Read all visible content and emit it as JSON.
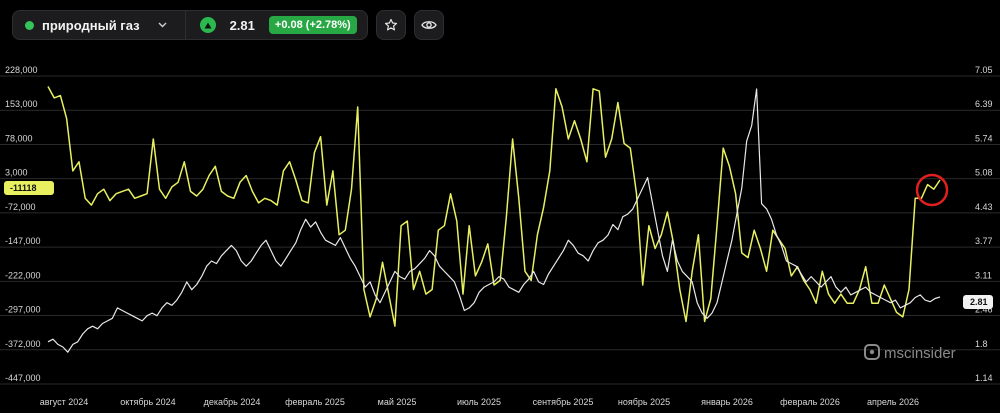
{
  "header": {
    "instrument_name": "природный газ",
    "price": "2.81",
    "change": "+0.08 (+2.78%)",
    "colors": {
      "status_dot": "#33c45a",
      "change_bg": "#28a745"
    },
    "icons": [
      "chevron-down-icon",
      "triangle-up-icon",
      "star-icon",
      "eye-icon"
    ]
  },
  "watermark": "mscinsider",
  "chart_data": {
    "type": "line",
    "x_labels": [
      "август 2024",
      "октябрь 2024",
      "декабрь 2024",
      "февраль 2025",
      "май 2025",
      "июль 2025",
      "сентябрь 2025",
      "ноябрь 2025",
      "январь 2026",
      "февраль 2026",
      "апрель 2026"
    ],
    "left_axis": {
      "ticks": [
        "228,000",
        "153,000",
        "78,000",
        "3,000",
        "-72,000",
        "-147,000",
        "-222,000",
        "-297,000",
        "-372,000",
        "-447,000"
      ],
      "range": [
        -447000,
        228000
      ]
    },
    "right_axis": {
      "ticks": [
        "7.05",
        "6.39",
        "5.74",
        "5.08",
        "4.43",
        "3.77",
        "3.11",
        "2.46",
        "1.8",
        "1.14"
      ],
      "range": [
        1.14,
        7.05
      ]
    },
    "current_left_label": "-11118",
    "current_right_label": "2.81",
    "series": [
      {
        "axis": "left",
        "color": "#e8f060",
        "values": [
          205000,
          180000,
          185000,
          135000,
          20000,
          40000,
          -40000,
          -55000,
          -30000,
          -20000,
          -45000,
          -30000,
          -25000,
          -20000,
          -40000,
          -35000,
          -30000,
          90000,
          -20000,
          -40000,
          -15000,
          -5000,
          40000,
          -25000,
          -35000,
          -20000,
          10000,
          30000,
          -25000,
          -35000,
          -40000,
          -5000,
          10000,
          -25000,
          -50000,
          -40000,
          -45000,
          -55000,
          20000,
          40000,
          0,
          -45000,
          -50000,
          60000,
          95000,
          -55000,
          20000,
          -120000,
          -110000,
          -20000,
          160000,
          -240000,
          -300000,
          -260000,
          -180000,
          -250000,
          -320000,
          -100000,
          -90000,
          -240000,
          -200000,
          -250000,
          -240000,
          -110000,
          -100000,
          -30000,
          -90000,
          -250000,
          -100000,
          -210000,
          -180000,
          -140000,
          -230000,
          -220000,
          -80000,
          90000,
          -40000,
          -200000,
          -220000,
          -120000,
          -60000,
          20000,
          200000,
          160000,
          90000,
          130000,
          90000,
          40000,
          200000,
          195000,
          50000,
          90000,
          170000,
          80000,
          70000,
          -30000,
          -230000,
          -100000,
          -150000,
          -120000,
          -70000,
          -140000,
          -240000,
          -310000,
          -200000,
          -120000,
          -310000,
          -260000,
          -100000,
          70000,
          30000,
          -30000,
          -160000,
          -170000,
          -110000,
          -150000,
          -200000,
          -110000,
          -130000,
          -150000,
          -210000,
          -190000,
          -220000,
          -240000,
          -270000,
          -200000,
          -250000,
          -270000,
          -250000,
          -270000,
          -270000,
          -240000,
          -190000,
          -270000,
          -270000,
          -230000,
          -260000,
          -290000,
          -300000,
          -240000,
          -40000,
          -40000,
          -10000,
          -20000,
          0
        ]
      },
      {
        "axis": "right",
        "color": "#e8e8ea",
        "values": [
          1.95,
          2.0,
          1.9,
          1.85,
          1.75,
          1.9,
          1.95,
          2.1,
          2.2,
          2.25,
          2.2,
          2.3,
          2.35,
          2.4,
          2.6,
          2.55,
          2.5,
          2.45,
          2.4,
          2.35,
          2.45,
          2.5,
          2.45,
          2.6,
          2.7,
          2.65,
          2.75,
          2.9,
          3.1,
          2.95,
          3.05,
          3.2,
          3.4,
          3.5,
          3.45,
          3.6,
          3.7,
          3.8,
          3.7,
          3.5,
          3.4,
          3.5,
          3.65,
          3.8,
          3.9,
          3.7,
          3.5,
          3.4,
          3.55,
          3.7,
          3.85,
          4.1,
          4.3,
          4.15,
          4.25,
          4.05,
          3.9,
          3.85,
          3.8,
          3.95,
          3.75,
          3.55,
          3.4,
          3.2,
          3.0,
          3.1,
          2.85,
          2.7,
          2.9,
          3.1,
          3.3,
          3.2,
          3.15,
          3.3,
          3.35,
          3.45,
          3.55,
          3.7,
          3.6,
          3.4,
          3.3,
          3.2,
          3.1,
          2.85,
          2.55,
          2.6,
          2.7,
          2.9,
          3.0,
          3.05,
          3.1,
          3.2,
          3.15,
          3.0,
          2.95,
          2.9,
          3.05,
          3.15,
          3.3,
          3.1,
          3.05,
          3.25,
          3.4,
          3.55,
          3.7,
          3.9,
          3.8,
          3.65,
          3.6,
          3.5,
          3.7,
          3.85,
          3.9,
          4.0,
          4.2,
          4.1,
          4.35,
          4.4,
          4.5,
          4.7,
          4.9,
          5.1,
          4.6,
          4.1,
          3.6,
          3.3,
          3.9,
          3.5,
          3.3,
          3.2,
          3.1,
          2.7,
          2.5,
          2.4,
          2.5,
          2.7,
          3.1,
          3.5,
          3.9,
          4.4,
          4.9,
          5.8,
          6.1,
          6.8,
          4.6,
          4.5,
          4.3,
          4.0,
          3.8,
          3.5,
          3.45,
          3.4,
          3.25,
          3.1,
          3.2,
          3.1,
          3.0,
          3.1,
          3.2,
          3.0,
          2.9,
          3.0,
          2.85,
          2.9,
          2.95,
          3.0,
          2.9,
          2.85,
          2.8,
          2.75,
          2.7,
          2.75,
          2.6,
          2.65,
          2.7,
          2.8,
          2.85,
          2.75,
          2.72,
          2.78,
          2.81
        ]
      }
    ]
  }
}
